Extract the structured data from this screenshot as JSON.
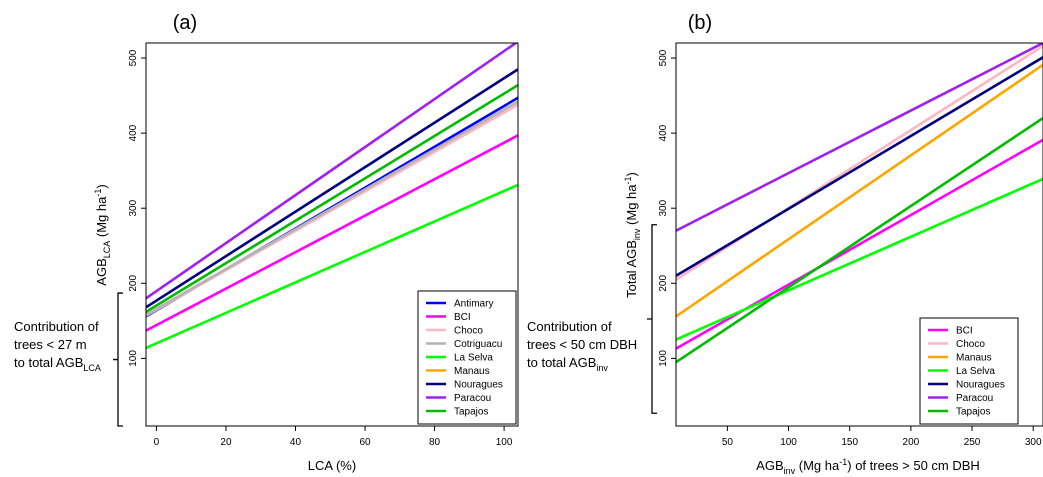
{
  "chart_data": [
    {
      "type": "line",
      "panel_label": "(a)",
      "xlabel": "LCA (%)",
      "ylabel": "AGB_LCA (Mg ha^-1)",
      "xlim": [
        -3,
        104
      ],
      "ylim": [
        10,
        520
      ],
      "xticks": [
        0,
        20,
        40,
        60,
        80,
        100
      ],
      "yticks": [
        100,
        200,
        300,
        400,
        500
      ],
      "grid": false,
      "legend_position": "bottom-right",
      "annotation": {
        "lines": [
          "Contribution of",
          "trees < 27 m",
          "to total AGB"
        ],
        "subscript": "LCA",
        "bracket_y": [
          10,
          187
        ]
      },
      "series": [
        {
          "name": "Antimary",
          "color": "#0000ff",
          "x": [
            -3,
            104
          ],
          "y": [
            156,
            447
          ]
        },
        {
          "name": "BCI",
          "color": "#ff00ff",
          "x": [
            -3,
            104
          ],
          "y": [
            137,
            397
          ]
        },
        {
          "name": "Choco",
          "color": "#ffb6c1",
          "x": [
            -3,
            104
          ],
          "y": [
            157,
            438
          ]
        },
        {
          "name": "Cotriguacu",
          "color": "#b4b4b4",
          "x": [
            -3,
            104
          ],
          "y": [
            158,
            442
          ]
        },
        {
          "name": "La Selva",
          "color": "#00ff00",
          "x": [
            -3,
            104
          ],
          "y": [
            114,
            331
          ]
        },
        {
          "name": "Manaus",
          "color": "#ffa500",
          "x": [],
          "y": []
        },
        {
          "name": "Nouragues",
          "color": "#000080",
          "x": [
            -3,
            104
          ],
          "y": [
            168,
            485
          ]
        },
        {
          "name": "Paracou",
          "color": "#a020f0",
          "x": [
            -3,
            104
          ],
          "y": [
            180,
            522
          ]
        },
        {
          "name": "Tapajos",
          "color": "#00bb00",
          "x": [
            -3,
            104
          ],
          "y": [
            162,
            464
          ]
        }
      ]
    },
    {
      "type": "line",
      "panel_label": "(b)",
      "xlabel": "AGB_inv (Mg ha^-1) of trees > 50 cm DBH",
      "ylabel": "Total AGB_inv (Mg ha^-1)",
      "xlim": [
        8,
        308
      ],
      "ylim": [
        10,
        520
      ],
      "xticks": [
        50,
        100,
        150,
        200,
        250,
        300
      ],
      "yticks": [
        100,
        200,
        300,
        400,
        500
      ],
      "grid": false,
      "legend_position": "bottom-right",
      "annotation": {
        "lines": [
          "Contribution of",
          "trees < 50 cm DBH",
          "to total AGB"
        ],
        "subscript": "inv",
        "bracket_y": [
          27,
          278
        ]
      },
      "series": [
        {
          "name": "BCI",
          "color": "#ff00ff",
          "x": [
            8,
            308
          ],
          "y": [
            113,
            391
          ]
        },
        {
          "name": "Choco",
          "color": "#ffb6c1",
          "x": [
            8,
            308
          ],
          "y": [
            205,
            516
          ]
        },
        {
          "name": "Manaus",
          "color": "#ffa500",
          "x": [
            8,
            308
          ],
          "y": [
            156,
            491
          ]
        },
        {
          "name": "La Selva",
          "color": "#00ff00",
          "x": [
            8,
            308
          ],
          "y": [
            125,
            339
          ]
        },
        {
          "name": "Nouragues",
          "color": "#000080",
          "x": [
            8,
            308
          ],
          "y": [
            210,
            501
          ]
        },
        {
          "name": "Paracou",
          "color": "#a020f0",
          "x": [
            8,
            308
          ],
          "y": [
            270,
            520
          ]
        },
        {
          "name": "Tapajos",
          "color": "#00bb00",
          "x": [
            8,
            308
          ],
          "y": [
            95,
            420
          ]
        }
      ]
    }
  ]
}
